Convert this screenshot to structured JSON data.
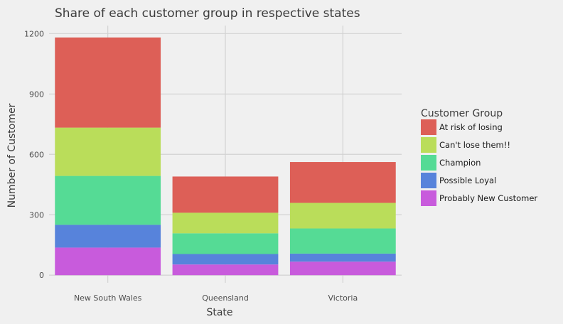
{
  "chart_data": {
    "type": "bar",
    "stacked": true,
    "title": "Share of each customer group in respective states",
    "xlabel": "State",
    "ylabel": "Number of Customer",
    "categories": [
      "New South Wales",
      "Queensland",
      "Victoria"
    ],
    "ylim": [
      -38,
      1240
    ],
    "yticks": [
      0,
      300,
      600,
      900,
      1200
    ],
    "grid": true,
    "legend": {
      "title": "Customer Group",
      "placement": "right"
    },
    "series": [
      {
        "name": "Probably New Customer",
        "color": "#c85bdc",
        "values": [
          137,
          53,
          67
        ]
      },
      {
        "name": "Possible Loyal",
        "color": "#5783db",
        "values": [
          113,
          52,
          40
        ]
      },
      {
        "name": "Champion",
        "color": "#55db95",
        "values": [
          243,
          103,
          125
        ]
      },
      {
        "name": "Can't lose them!!",
        "color": "#badd5a",
        "values": [
          240,
          102,
          127
        ]
      },
      {
        "name": "At risk of losing",
        "color": "#dd5f57",
        "values": [
          448,
          180,
          203
        ]
      }
    ],
    "legend_order": [
      "At risk of losing",
      "Can't lose them!!",
      "Champion",
      "Possible Loyal",
      "Probably New Customer"
    ]
  }
}
